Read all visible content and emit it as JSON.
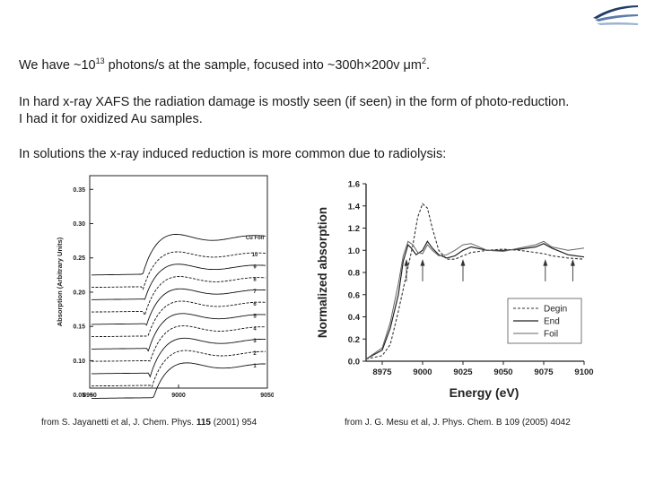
{
  "header": {
    "logo_icon": "corner-logo-icon"
  },
  "body_text": {
    "flux_prefix": "We have ~10",
    "flux_exp": "13",
    "flux_mid": " photons/s at the sample, focused into ~300h×200v μm",
    "flux_unit_exp": "2",
    "flux_suffix": ".",
    "damage_line1": "In hard x-ray XAFS the radiation damage is mostly seen (if seen) in the form of photo-reduction.",
    "damage_line2": "I had it for oxidized Au samples.",
    "solution_line": "In solutions the x-ray induced reduction is more common due to radiolysis:"
  },
  "captions": {
    "left_prefix": "from S. Jayanetti et al, J. Chem. Phys.",
    "left_volume": "115",
    "left_suffix": "(2001) 954",
    "right": "from J. G. Mesu et al, J. Phys. Chem. B 109 (2005) 4042"
  },
  "chart_data": [
    {
      "type": "line",
      "xlabel": "",
      "ylabel": "Absorption (Arbitrary Units)",
      "xlim": [
        8950,
        9050
      ],
      "ylim": [
        0.06,
        0.37
      ],
      "x_ticks": [
        "8950",
        "9000",
        "9050"
      ],
      "y_ticks": [
        "0.35",
        "0.30",
        "0.25",
        "0.20",
        "0.15",
        "0.10",
        "0.05"
      ],
      "y_tick_values": [
        0.35,
        0.3,
        0.25,
        0.2,
        0.15,
        0.1,
        0.05
      ],
      "curve_labels": [
        "Cu Foil",
        "10",
        "9",
        "8",
        "7",
        "6",
        "5",
        "4",
        "3",
        "2",
        "1"
      ],
      "curve_offsets": [
        0.28,
        0.255,
        0.237,
        0.219,
        0.201,
        0.183,
        0.165,
        0.147,
        0.129,
        0.111,
        0.093
      ],
      "curve_base": [
        0.225,
        0.207,
        0.189,
        0.171,
        0.153,
        0.135,
        0.117,
        0.099,
        0.081,
        0.063,
        0.045
      ]
    },
    {
      "type": "line",
      "xlabel": "Energy (eV)",
      "ylabel": "Normalized absorption",
      "xlim": [
        8965,
        9100
      ],
      "ylim": [
        0.0,
        1.6
      ],
      "x_ticks": [
        "8975",
        "9000",
        "9025",
        "9050",
        "9075",
        "9100"
      ],
      "x_tick_values": [
        8975,
        9000,
        9025,
        9050,
        9075,
        9100
      ],
      "y_ticks": [
        "0.0",
        "0.2",
        "0.4",
        "0.6",
        "0.8",
        "1.0",
        "1.2",
        "1.4",
        "1.6"
      ],
      "y_tick_values": [
        0.0,
        0.2,
        0.4,
        0.6,
        0.8,
        1.0,
        1.2,
        1.4,
        1.6
      ],
      "arrows_x": [
        8990,
        9000,
        9025,
        9076,
        9093
      ],
      "legend_position": "bottom-right",
      "series": [
        {
          "name": "Degin",
          "style": "dashed",
          "x": [
            8965,
            8975,
            8980,
            8985,
            8988,
            8991,
            8994,
            8997,
            9000,
            9003,
            9006,
            9010,
            9015,
            9020,
            9025,
            9030,
            9040,
            9050,
            9060,
            9070,
            9075,
            9080,
            9090,
            9100
          ],
          "y": [
            0.02,
            0.05,
            0.15,
            0.45,
            0.65,
            0.85,
            1.05,
            1.3,
            1.42,
            1.38,
            1.2,
            1.0,
            0.92,
            0.92,
            0.95,
            0.98,
            1.0,
            1.01,
            1.0,
            0.98,
            0.97,
            0.95,
            0.93,
            0.92
          ]
        },
        {
          "name": "End",
          "style": "solid",
          "x": [
            8965,
            8975,
            8980,
            8985,
            8988,
            8991,
            8993,
            8996,
            9000,
            9003,
            9006,
            9010,
            9015,
            9020,
            9025,
            9030,
            9040,
            9050,
            9060,
            9070,
            9075,
            9080,
            9090,
            9100
          ],
          "y": [
            0.02,
            0.1,
            0.3,
            0.6,
            0.9,
            1.05,
            1.02,
            0.96,
            1.0,
            1.08,
            1.02,
            0.96,
            0.93,
            0.95,
            1.0,
            1.03,
            1.0,
            1.0,
            1.01,
            1.03,
            1.06,
            1.02,
            0.96,
            0.94
          ]
        },
        {
          "name": "Foil",
          "style": "thin",
          "x": [
            8965,
            8975,
            8980,
            8985,
            8988,
            8991,
            8994,
            8997,
            9000,
            9003,
            9006,
            9010,
            9015,
            9020,
            9025,
            9030,
            9040,
            9050,
            9060,
            9070,
            9075,
            9080,
            9090,
            9100
          ],
          "y": [
            0.02,
            0.12,
            0.35,
            0.7,
            0.95,
            1.08,
            1.05,
            0.98,
            0.97,
            1.05,
            1.0,
            0.95,
            0.96,
            1.0,
            1.05,
            1.06,
            1.0,
            0.99,
            1.02,
            1.05,
            1.08,
            1.03,
            1.0,
            1.02
          ]
        }
      ]
    }
  ]
}
